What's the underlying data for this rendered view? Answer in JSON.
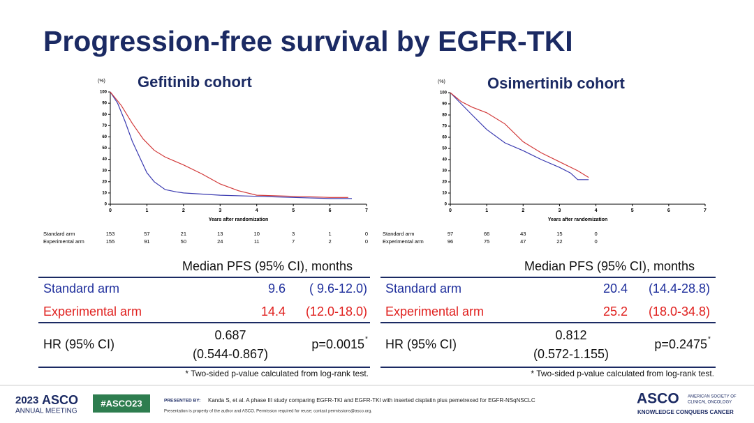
{
  "title": "Progression-free survival by EGFR-TKI",
  "chart_data": [
    {
      "type": "line",
      "title": "Gefitinib cohort",
      "y_label": "(%)",
      "x_label": "Years after randomization",
      "xlim": [
        0,
        7
      ],
      "xticks": [
        0,
        1,
        2,
        3,
        4,
        5,
        6,
        7
      ],
      "ylim": [
        0,
        100
      ],
      "yticks": [
        0,
        10,
        20,
        30,
        40,
        50,
        60,
        70,
        80,
        90,
        100
      ],
      "series": [
        {
          "name": "Standard arm",
          "color": "#3a3ab0",
          "x": [
            0,
            0.2,
            0.4,
            0.6,
            0.8,
            1.0,
            1.2,
            1.5,
            1.8,
            2.0,
            2.5,
            3.0,
            4.0,
            5.0,
            6.0,
            6.6
          ],
          "values": [
            100,
            90,
            74,
            56,
            42,
            28,
            20,
            13,
            11,
            10,
            9,
            8,
            7,
            6,
            5,
            5
          ],
          "at_risk": [
            153,
            57,
            21,
            13,
            10,
            3,
            1,
            0
          ]
        },
        {
          "name": "Experimental arm",
          "color": "#d23a3a",
          "x": [
            0,
            0.3,
            0.6,
            0.9,
            1.2,
            1.5,
            2.0,
            2.5,
            3.0,
            3.5,
            4.0,
            5.0,
            6.0,
            6.5
          ],
          "values": [
            100,
            88,
            72,
            58,
            48,
            42,
            35,
            27,
            18,
            12,
            8,
            7,
            6,
            6
          ],
          "at_risk": [
            155,
            91,
            50,
            24,
            11,
            7,
            2,
            0
          ]
        }
      ]
    },
    {
      "type": "line",
      "title": "Osimertinib cohort",
      "y_label": "(%)",
      "x_label": "Years after randomization",
      "xlim": [
        0,
        7
      ],
      "xticks": [
        0,
        1,
        2,
        3,
        4,
        5,
        6,
        7
      ],
      "ylim": [
        0,
        100
      ],
      "yticks": [
        0,
        10,
        20,
        30,
        40,
        50,
        60,
        70,
        80,
        90,
        100
      ],
      "series": [
        {
          "name": "Standard arm",
          "color": "#3a3ab0",
          "x": [
            0,
            0.3,
            0.6,
            1.0,
            1.5,
            2.0,
            2.5,
            3.0,
            3.3,
            3.5,
            3.8
          ],
          "values": [
            100,
            90,
            80,
            67,
            55,
            48,
            40,
            33,
            28,
            22,
            22
          ],
          "at_risk": [
            97,
            66,
            43,
            15,
            0
          ]
        },
        {
          "name": "Experimental arm",
          "color": "#d23a3a",
          "x": [
            0,
            0.3,
            0.6,
            1.0,
            1.5,
            2.0,
            2.5,
            3.0,
            3.5,
            3.8
          ],
          "values": [
            100,
            92,
            87,
            82,
            72,
            56,
            46,
            38,
            30,
            24
          ],
          "at_risk": [
            96,
            75,
            47,
            22,
            0
          ]
        }
      ]
    }
  ],
  "tables": [
    {
      "header": "Median PFS (95% CI), months",
      "rows": [
        [
          "Standard arm",
          "9.6",
          "( 9.6-12.0)"
        ],
        [
          "Experimental arm",
          "14.4",
          "(12.0-18.0)"
        ]
      ],
      "hr": [
        "HR (95% CI)",
        "0.687",
        "(0.544-0.867)",
        "p=0.0015",
        "*"
      ],
      "footnote": "* Two-sided p-value calculated from log-rank test."
    },
    {
      "header": "Median PFS (95% CI), months",
      "rows": [
        [
          "Standard arm",
          "20.4",
          "(14.4-28.8)"
        ],
        [
          "Experimental arm",
          "25.2",
          "(18.0-34.8)"
        ]
      ],
      "hr": [
        "HR (95% CI)",
        "0.812",
        "(0.572-1.155)",
        "p=0.2475",
        "*"
      ],
      "footnote": "* Two-sided p-value calculated from log-rank test."
    }
  ],
  "footer": {
    "year": "2023",
    "asco": "ASCO",
    "meeting": "ANNUAL MEETING",
    "hashtag": "#ASCO23",
    "presented_by": "PRESENTED BY:",
    "citation": "Kanda S, et al. A phase III study comparing EGFR-TKI and EGFR-TKI with inserted cisplatin plus pemetrexed for EGFR-NSqNSCLC",
    "permission": "Presentation is property of the author and ASCO. Permission required for reuse; contact permissions@asco.org.",
    "logo": "ASCO",
    "society": [
      "AMERICAN SOCIETY OF",
      "CLINICAL ONCOLOGY"
    ],
    "tagline": "KNOWLEDGE CONQUERS CANCER"
  }
}
